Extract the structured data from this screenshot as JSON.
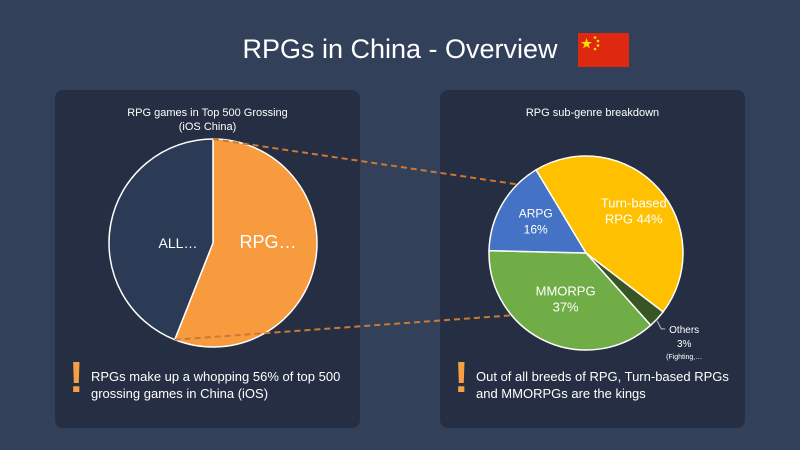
{
  "page": {
    "title": "RPGs in China - Overview"
  },
  "flag": {
    "name": "china-flag-icon",
    "red": "#de2910",
    "yellow": "#ffde00"
  },
  "left_panel": {
    "takeaway": "RPGs make up a whopping 56% of top 500 grossing games in China (iOS)"
  },
  "right_panel": {
    "takeaway": "Out of all breeds of RPG, Turn-based RPGs and MMORPGs are the kings"
  },
  "colors": {
    "orange": "#f79b3e",
    "navy": "#2b3a55",
    "yellow": "#ffc000",
    "green": "#70ad47",
    "blue": "#4472c4",
    "dark_green": "#375623",
    "leader_line": "#c97a32",
    "accent": "#f7a043"
  },
  "chart_data": [
    {
      "type": "pie",
      "title": "RPG games in Top 500 Grossing (iOS China)",
      "categories": [
        "RPG…",
        "ALL…"
      ],
      "values": [
        56,
        44
      ],
      "labels": [
        "RPG…",
        "ALL…"
      ],
      "colors": [
        "#f79b3e",
        "#2b3a55"
      ]
    },
    {
      "type": "pie",
      "title": "RPG sub-genre breakdown",
      "categories": [
        "Turn-based RPG",
        "Others",
        "MMORPG",
        "ARPG"
      ],
      "values": [
        44,
        3,
        37,
        16
      ],
      "labels": [
        "Turn-based RPG 44%",
        "Others 3% (Fighting,…",
        "MMORPG 37%",
        "ARPG 16%"
      ],
      "label_lines": [
        [
          "Turn-based",
          "RPG 44%"
        ],
        [
          "Others",
          "3%",
          "(Fighting,…"
        ],
        [
          "MMORPG",
          "37%"
        ],
        [
          "ARPG",
          "16%"
        ]
      ],
      "colors": [
        "#ffc000",
        "#375623",
        "#70ad47",
        "#4472c4"
      ]
    }
  ]
}
